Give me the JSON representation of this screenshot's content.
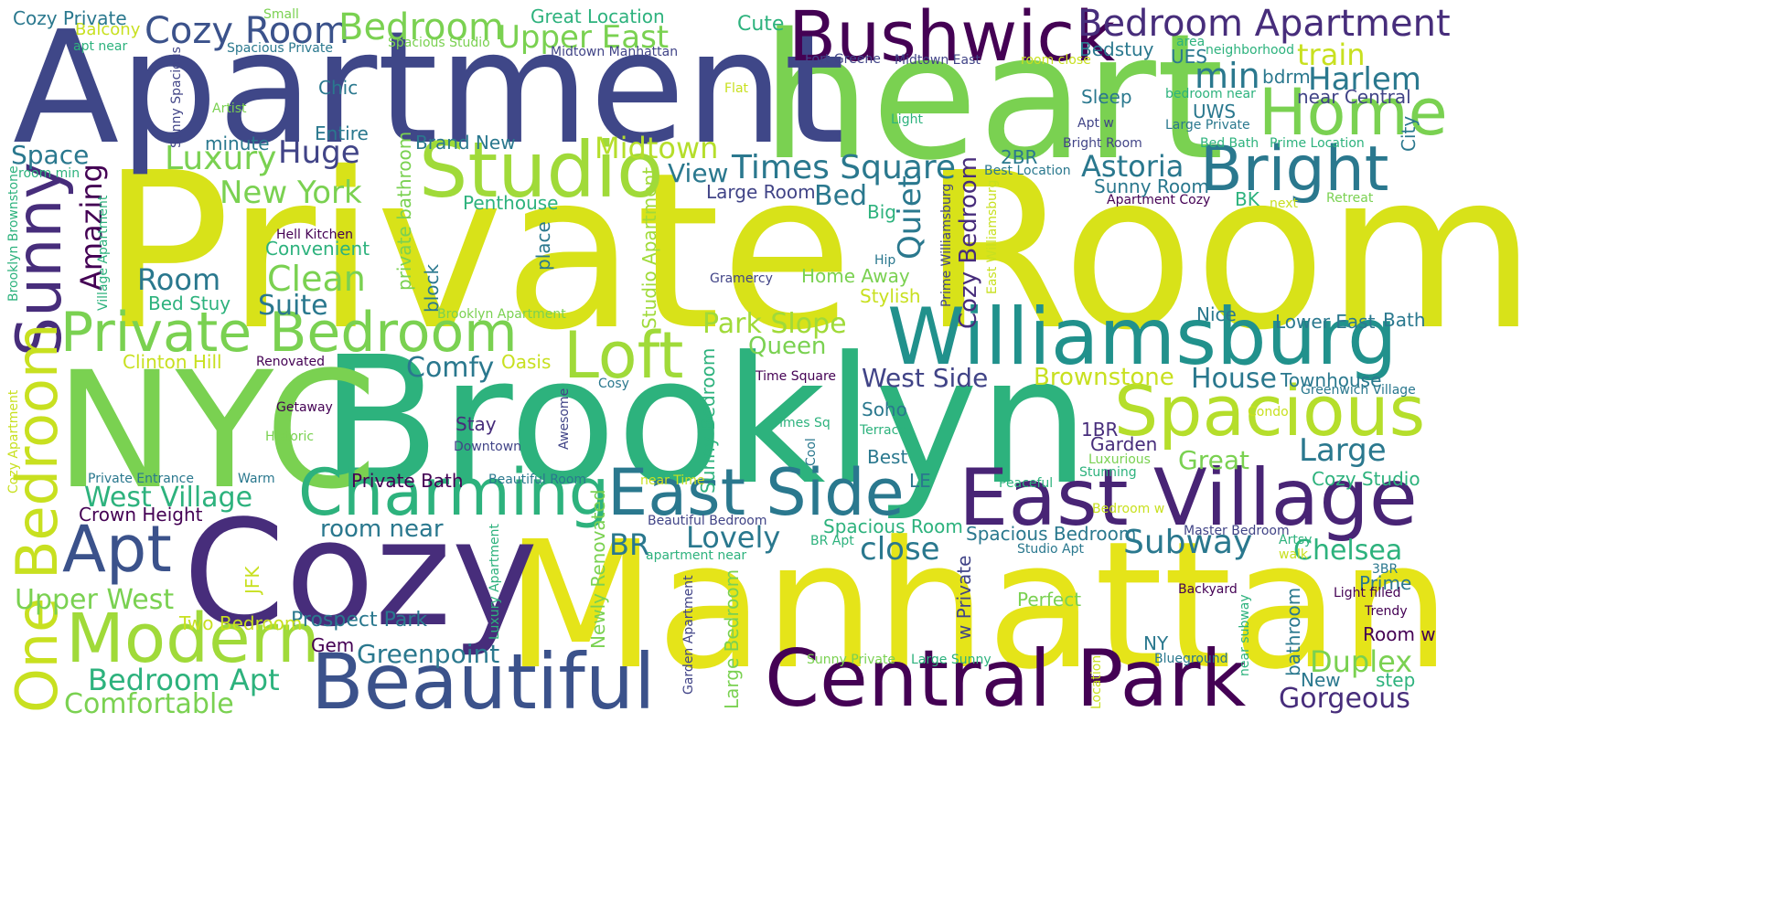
{
  "words": [
    {
      "text": "Private Room",
      "color": "#d8e219"
    },
    {
      "text": "heart",
      "color": "#7ad151"
    },
    {
      "text": "Apartment",
      "color": "#3f4788"
    },
    {
      "text": "Brooklyn",
      "color": "#2db27d"
    },
    {
      "text": "NYC",
      "color": "#7ad151"
    },
    {
      "text": "Manhattan",
      "color": "#e5e419"
    },
    {
      "text": "Cozy",
      "color": "#472d7b"
    },
    {
      "text": "Williamsburg",
      "color": "#21918c"
    },
    {
      "text": "Studio",
      "color": "#a0da39"
    },
    {
      "text": "Bushwick",
      "color": "#440154"
    },
    {
      "text": "Central Park",
      "color": "#440154"
    },
    {
      "text": "East Village",
      "color": "#482475"
    },
    {
      "text": "Beautiful",
      "color": "#3b528b"
    },
    {
      "text": "Charming",
      "color": "#2db27d"
    },
    {
      "text": "East Side",
      "color": "#2a788e"
    },
    {
      "text": "Spacious",
      "color": "#b5de2b"
    },
    {
      "text": "Private Bedroom",
      "color": "#7ad151"
    },
    {
      "text": "Bright",
      "color": "#2a788e"
    },
    {
      "text": "Home",
      "color": "#7ad151"
    },
    {
      "text": "Loft",
      "color": "#a0da39"
    },
    {
      "text": "Modern",
      "color": "#a0da39"
    },
    {
      "text": "Apt",
      "color": "#3b528b"
    },
    {
      "text": "Sunny",
      "color": "#472d7b"
    },
    {
      "text": "One Bedroom",
      "color": "#c8e020"
    },
    {
      "text": "Bedroom Apartment",
      "color": "#472d7b"
    },
    {
      "text": "Cozy Room",
      "color": "#3b528b"
    },
    {
      "text": "Bedroom",
      "color": "#7ad151"
    },
    {
      "text": "Upper East",
      "color": "#7ad151"
    },
    {
      "text": "Times Square",
      "color": "#2a788e"
    },
    {
      "text": "Midtown",
      "color": "#b5de2b"
    },
    {
      "text": "Huge",
      "color": "#414487"
    },
    {
      "text": "Luxury",
      "color": "#7ad151"
    },
    {
      "text": "New York",
      "color": "#7ad151"
    },
    {
      "text": "Clean",
      "color": "#7ad151"
    },
    {
      "text": "Room",
      "color": "#2a788e"
    },
    {
      "text": "Suite",
      "color": "#2a788e"
    },
    {
      "text": "Space",
      "color": "#2a788e"
    },
    {
      "text": "Harlem",
      "color": "#2a788e"
    },
    {
      "text": "Astoria",
      "color": "#2a788e"
    },
    {
      "text": "min",
      "color": "#2a788e"
    },
    {
      "text": "train",
      "color": "#c8e020"
    },
    {
      "text": "Park Slope",
      "color": "#a0da39"
    },
    {
      "text": "Queen",
      "color": "#7ad151"
    },
    {
      "text": "Comfy",
      "color": "#2a788e"
    },
    {
      "text": "West Side",
      "color": "#414487"
    },
    {
      "text": "Brownstone",
      "color": "#c8e020"
    },
    {
      "text": "House",
      "color": "#2a788e"
    },
    {
      "text": "Large",
      "color": "#2a788e"
    },
    {
      "text": "Great",
      "color": "#7ad151"
    },
    {
      "text": "Subway",
      "color": "#2a788e"
    },
    {
      "text": "Chelsea",
      "color": "#2db27d"
    },
    {
      "text": "Lovely",
      "color": "#2a788e"
    },
    {
      "text": "close",
      "color": "#2a788e"
    },
    {
      "text": "BR",
      "color": "#2a788e"
    },
    {
      "text": "Upper West",
      "color": "#7ad151"
    },
    {
      "text": "West Village",
      "color": "#2db27d"
    },
    {
      "text": "Bedroom Apt",
      "color": "#2db27d"
    },
    {
      "text": "Comfortable",
      "color": "#7ad151"
    },
    {
      "text": "Greenpoint",
      "color": "#2a788e"
    },
    {
      "text": "Prospect Park",
      "color": "#2a788e"
    },
    {
      "text": "room near",
      "color": "#2a788e"
    },
    {
      "text": "Duplex",
      "color": "#7ad151"
    },
    {
      "text": "Gorgeous",
      "color": "#472d7b"
    },
    {
      "text": "Quiet",
      "color": "#2a788e"
    },
    {
      "text": "Cozy Bedroom",
      "color": "#472d7b"
    },
    {
      "text": "Amazing",
      "color": "#440154"
    },
    {
      "text": "Bed",
      "color": "#2a788e"
    },
    {
      "text": "View",
      "color": "#2a788e"
    },
    {
      "text": "Entire",
      "color": "#2a788e"
    },
    {
      "text": "Chic",
      "color": "#2a788e"
    },
    {
      "text": "Brand New",
      "color": "#2a788e"
    },
    {
      "text": "Balcony",
      "color": "#c8e020"
    },
    {
      "text": "Cozy Private",
      "color": "#2a788e"
    },
    {
      "text": "Great Location",
      "color": "#2db27d"
    },
    {
      "text": "Small",
      "color": "#7ad151"
    },
    {
      "text": "Cute",
      "color": "#2db27d"
    },
    {
      "text": "apt near",
      "color": "#2db27d"
    },
    {
      "text": "Spacious Private",
      "color": "#2a788e"
    },
    {
      "text": "Spacious Studio",
      "color": "#7ad151"
    },
    {
      "text": "Midtown Manhattan",
      "color": "#414487"
    },
    {
      "text": "Fort Greene",
      "color": "#414487"
    },
    {
      "text": "Midtown East",
      "color": "#414487"
    },
    {
      "text": "room close",
      "color": "#c8e020"
    },
    {
      "text": "Bedstuy",
      "color": "#2a788e"
    },
    {
      "text": "area",
      "color": "#2db27d"
    },
    {
      "text": "neighborhood",
      "color": "#2db27d"
    },
    {
      "text": "UES",
      "color": "#2a788e"
    },
    {
      "text": "bdrm",
      "color": "#2a788e"
    },
    {
      "text": "near Central",
      "color": "#414487"
    },
    {
      "text": "Sleep",
      "color": "#2a788e"
    },
    {
      "text": "bedroom near",
      "color": "#2db27d"
    },
    {
      "text": "UWS",
      "color": "#2a788e"
    },
    {
      "text": "Large Private",
      "color": "#2a788e"
    },
    {
      "text": "Apt w",
      "color": "#414487"
    },
    {
      "text": "Light",
      "color": "#2db27d"
    },
    {
      "text": "Bright Room",
      "color": "#414487"
    },
    {
      "text": "Bed Bath",
      "color": "#2db27d"
    },
    {
      "text": "Prime Location",
      "color": "#2db27d"
    },
    {
      "text": "City",
      "color": "#2a788e"
    },
    {
      "text": "2BR",
      "color": "#2a788e"
    },
    {
      "text": "Best Location",
      "color": "#2a788e"
    },
    {
      "text": "Sunny Room",
      "color": "#2a788e"
    },
    {
      "text": "Apartment Cozy",
      "color": "#440154"
    },
    {
      "text": "Retreat",
      "color": "#7ad151"
    },
    {
      "text": "BK",
      "color": "#2db27d"
    },
    {
      "text": "next",
      "color": "#c8e020"
    },
    {
      "text": "Big",
      "color": "#2db27d"
    },
    {
      "text": "Hip",
      "color": "#2a788e"
    },
    {
      "text": "Home Away",
      "color": "#7ad151"
    },
    {
      "text": "Stylish",
      "color": "#c8e020"
    },
    {
      "text": "Gramercy",
      "color": "#414487"
    },
    {
      "text": "Prime Williamsburg",
      "color": "#414487"
    },
    {
      "text": "East Williamsburg",
      "color": "#c8e020"
    },
    {
      "text": "Nice",
      "color": "#2a788e"
    },
    {
      "text": "Lower East",
      "color": "#2a788e"
    },
    {
      "text": "Bath",
      "color": "#2a788e"
    },
    {
      "text": "Townhouse",
      "color": "#2a788e"
    },
    {
      "text": "Greenwich Village",
      "color": "#2a788e"
    },
    {
      "text": "Time Square",
      "color": "#440154"
    },
    {
      "text": "Cosy",
      "color": "#2a788e"
    },
    {
      "text": "Soho",
      "color": "#2a788e"
    },
    {
      "text": "Terrace",
      "color": "#2db27d"
    },
    {
      "text": "Best",
      "color": "#2a788e"
    },
    {
      "text": "1BR",
      "color": "#472d7b"
    },
    {
      "text": "Garden",
      "color": "#472d7b"
    },
    {
      "text": "Condo",
      "color": "#c8e020"
    },
    {
      "text": "Luxurious",
      "color": "#7ad151"
    },
    {
      "text": "Stunning",
      "color": "#2db27d"
    },
    {
      "text": "Cozy Studio",
      "color": "#2db27d"
    },
    {
      "text": "Peaceful",
      "color": "#2db27d"
    },
    {
      "text": "Bedroom w",
      "color": "#c8e020"
    },
    {
      "text": "LE",
      "color": "#2a788e"
    },
    {
      "text": "Spacious Room",
      "color": "#2db27d"
    },
    {
      "text": "Spacious Bedroom",
      "color": "#2a788e"
    },
    {
      "text": "Master Bedroom",
      "color": "#414487"
    },
    {
      "text": "Artsy",
      "color": "#2db27d"
    },
    {
      "text": "walk",
      "color": "#c8e020"
    },
    {
      "text": "Studio Apt",
      "color": "#2a788e"
    },
    {
      "text": "BR Apt",
      "color": "#2db27d"
    },
    {
      "text": "3BR",
      "color": "#2a788e"
    },
    {
      "text": "Prime",
      "color": "#2a788e"
    },
    {
      "text": "Light filled",
      "color": "#440154"
    },
    {
      "text": "Trendy",
      "color": "#440154"
    },
    {
      "text": "Backyard",
      "color": "#440154"
    },
    {
      "text": "Perfect",
      "color": "#7ad151"
    },
    {
      "text": "NY",
      "color": "#2a788e"
    },
    {
      "text": "Room w",
      "color": "#440154"
    },
    {
      "text": "Blueground",
      "color": "#2a788e"
    },
    {
      "text": "step",
      "color": "#2db27d"
    },
    {
      "text": "New",
      "color": "#2a788e"
    },
    {
      "text": "bathroom",
      "color": "#2a788e"
    },
    {
      "text": "near subway",
      "color": "#2db27d"
    },
    {
      "text": "Sunny Private",
      "color": "#7ad151"
    },
    {
      "text": "Large Sunny",
      "color": "#2db27d"
    },
    {
      "text": "w Private",
      "color": "#414487"
    },
    {
      "text": "Location",
      "color": "#c8e020"
    },
    {
      "text": "Beautiful Bedroom",
      "color": "#414487"
    },
    {
      "text": "apartment near",
      "color": "#2db27d"
    },
    {
      "text": "Large Bedroom",
      "color": "#7ad151"
    },
    {
      "text": "Garden Apartment",
      "color": "#414487"
    },
    {
      "text": "Newly Renovated",
      "color": "#7ad151"
    },
    {
      "text": "Luxury Apartment",
      "color": "#2db27d"
    },
    {
      "text": "Penthouse",
      "color": "#2db27d"
    },
    {
      "text": "Large Room",
      "color": "#414487"
    },
    {
      "text": "Studio Apartment",
      "color": "#a0da39"
    },
    {
      "text": "place",
      "color": "#2a788e"
    },
    {
      "text": "private bathroom",
      "color": "#7ad151"
    },
    {
      "text": "block",
      "color": "#2a788e"
    },
    {
      "text": "Brooklyn Apartment",
      "color": "#7ad151"
    },
    {
      "text": "Oasis",
      "color": "#c8e020"
    },
    {
      "text": "Stay",
      "color": "#472d7b"
    },
    {
      "text": "Downtown",
      "color": "#414487"
    },
    {
      "text": "Awesome",
      "color": "#414487"
    },
    {
      "text": "Times Sq",
      "color": "#2db27d"
    },
    {
      "text": "Cool",
      "color": "#2a788e"
    },
    {
      "text": "Sunny Bedroom",
      "color": "#2db27d"
    },
    {
      "text": "Private Bath",
      "color": "#440154"
    },
    {
      "text": "Beautiful Room",
      "color": "#2a788e"
    },
    {
      "text": "near Time",
      "color": "#c8e020"
    },
    {
      "text": "Crown Height",
      "color": "#440154"
    },
    {
      "text": "Private Entrance",
      "color": "#2a788e"
    },
    {
      "text": "Warm",
      "color": "#2a788e"
    },
    {
      "text": "Two Bedroom",
      "color": "#c8e020"
    },
    {
      "text": "Gem",
      "color": "#440154"
    },
    {
      "text": "JFK",
      "color": "#c8e020"
    },
    {
      "text": "Hell Kitchen",
      "color": "#440154"
    },
    {
      "text": "Convenient",
      "color": "#2db27d"
    },
    {
      "text": "Bed Stuy",
      "color": "#2db27d"
    },
    {
      "text": "Clinton Hill",
      "color": "#c8e020"
    },
    {
      "text": "Renovated",
      "color": "#440154"
    },
    {
      "text": "Getaway",
      "color": "#440154"
    },
    {
      "text": "Historic",
      "color": "#7ad151"
    },
    {
      "text": "Cozy Apartment",
      "color": "#c8e020"
    },
    {
      "text": "Brooklyn Brownstone",
      "color": "#2db27d"
    },
    {
      "text": "room min",
      "color": "#2db27d"
    },
    {
      "text": "Village Apartment",
      "color": "#2db27d"
    },
    {
      "text": "Sunny Spacious",
      "color": "#414487"
    },
    {
      "text": "Artist",
      "color": "#7ad151"
    },
    {
      "text": "minute",
      "color": "#2a788e"
    },
    {
      "text": "Flat",
      "color": "#c8e020"
    }
  ]
}
